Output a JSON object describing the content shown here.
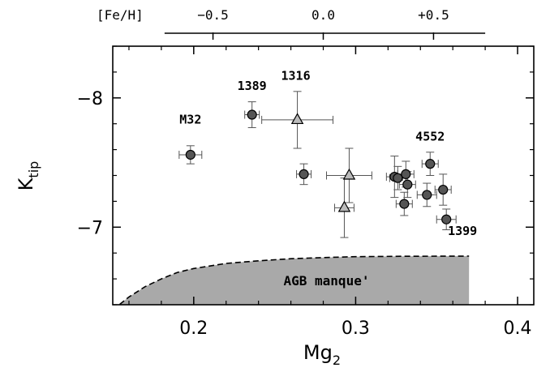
{
  "chart_data": {
    "type": "scatter",
    "xlabel": "Mg",
    "xlabel_sub": "2",
    "ylabel": "K",
    "ylabel_sub": "tip",
    "xlim": [
      0.15,
      0.41
    ],
    "ylim": [
      -6.4,
      -8.4
    ],
    "y_inverted": true,
    "x_ticks": [
      0.2,
      0.3,
      0.4
    ],
    "x_tick_labels": [
      "0.2",
      "0.3",
      "0.4"
    ],
    "y_ticks": [
      -8,
      -7
    ],
    "y_tick_labels": [
      "−8",
      "−7"
    ],
    "top_axis": {
      "label": "[Fe/H]",
      "ticks_mg2": [
        0.2119,
        0.28,
        0.3481
      ],
      "tick_labels": [
        "−0.5",
        "0.0",
        "+0.5"
      ],
      "range_mg2": [
        0.182,
        0.38
      ]
    },
    "series": [
      {
        "marker": "circle",
        "points": [
          {
            "x": 0.198,
            "y": -7.56,
            "xerr": 0.007,
            "yerr": 0.07
          },
          {
            "x": 0.236,
            "y": -7.87,
            "xerr": 0.0045,
            "yerr": 0.1
          },
          {
            "x": 0.268,
            "y": -7.41,
            "xerr": 0.0045,
            "yerr": 0.08
          },
          {
            "x": 0.324,
            "y": -7.39,
            "xerr": 0.005,
            "yerr": 0.16
          },
          {
            "x": 0.326,
            "y": -7.38,
            "xerr": 0.005,
            "yerr": 0.09
          },
          {
            "x": 0.33,
            "y": -7.18,
            "xerr": 0.005,
            "yerr": 0.09
          },
          {
            "x": 0.331,
            "y": -7.41,
            "xerr": 0.005,
            "yerr": 0.1
          },
          {
            "x": 0.332,
            "y": -7.33,
            "xerr": 0.005,
            "yerr": 0.1
          },
          {
            "x": 0.344,
            "y": -7.25,
            "xerr": 0.006,
            "yerr": 0.09
          },
          {
            "x": 0.346,
            "y": -7.49,
            "xerr": 0.005,
            "yerr": 0.09
          },
          {
            "x": 0.354,
            "y": -7.29,
            "xerr": 0.005,
            "yerr": 0.12
          },
          {
            "x": 0.356,
            "y": -7.06,
            "xerr": 0.006,
            "yerr": 0.08
          }
        ]
      },
      {
        "marker": "triangle",
        "points": [
          {
            "x": 0.264,
            "y": -7.83,
            "xerr": 0.022,
            "yerr": 0.22
          },
          {
            "x": 0.293,
            "y": -7.15,
            "xerr": 0.006,
            "yerr": 0.23
          },
          {
            "x": 0.296,
            "y": -7.4,
            "xerr": 0.014,
            "yerr": 0.21
          }
        ]
      }
    ],
    "annotations": [
      {
        "text": "M32",
        "x": 0.198,
        "y": -7.8
      },
      {
        "text": "1389",
        "x": 0.236,
        "y": -8.06
      },
      {
        "text": "1316",
        "x": 0.263,
        "y": -8.14
      },
      {
        "text": "4552",
        "x": 0.346,
        "y": -7.67
      },
      {
        "text": "1399",
        "x": 0.366,
        "y": -6.94
      }
    ],
    "region": {
      "label": "AGB manque'",
      "boundary": [
        [
          0.15,
          -6.36
        ],
        [
          0.16,
          -6.46
        ],
        [
          0.17,
          -6.54
        ],
        [
          0.18,
          -6.6
        ],
        [
          0.19,
          -6.65
        ],
        [
          0.2,
          -6.68
        ],
        [
          0.21,
          -6.7
        ],
        [
          0.22,
          -6.72
        ],
        [
          0.24,
          -6.74
        ],
        [
          0.26,
          -6.756
        ],
        [
          0.28,
          -6.765
        ],
        [
          0.3,
          -6.772
        ],
        [
          0.33,
          -6.775
        ],
        [
          0.37,
          -6.776
        ]
      ]
    },
    "colors": {
      "marker_fill": "#555555",
      "triangle_fill": "#bbbbbb",
      "region_fill": "#a9a9a9",
      "errorbar": "#555555"
    },
    "grid": false
  }
}
